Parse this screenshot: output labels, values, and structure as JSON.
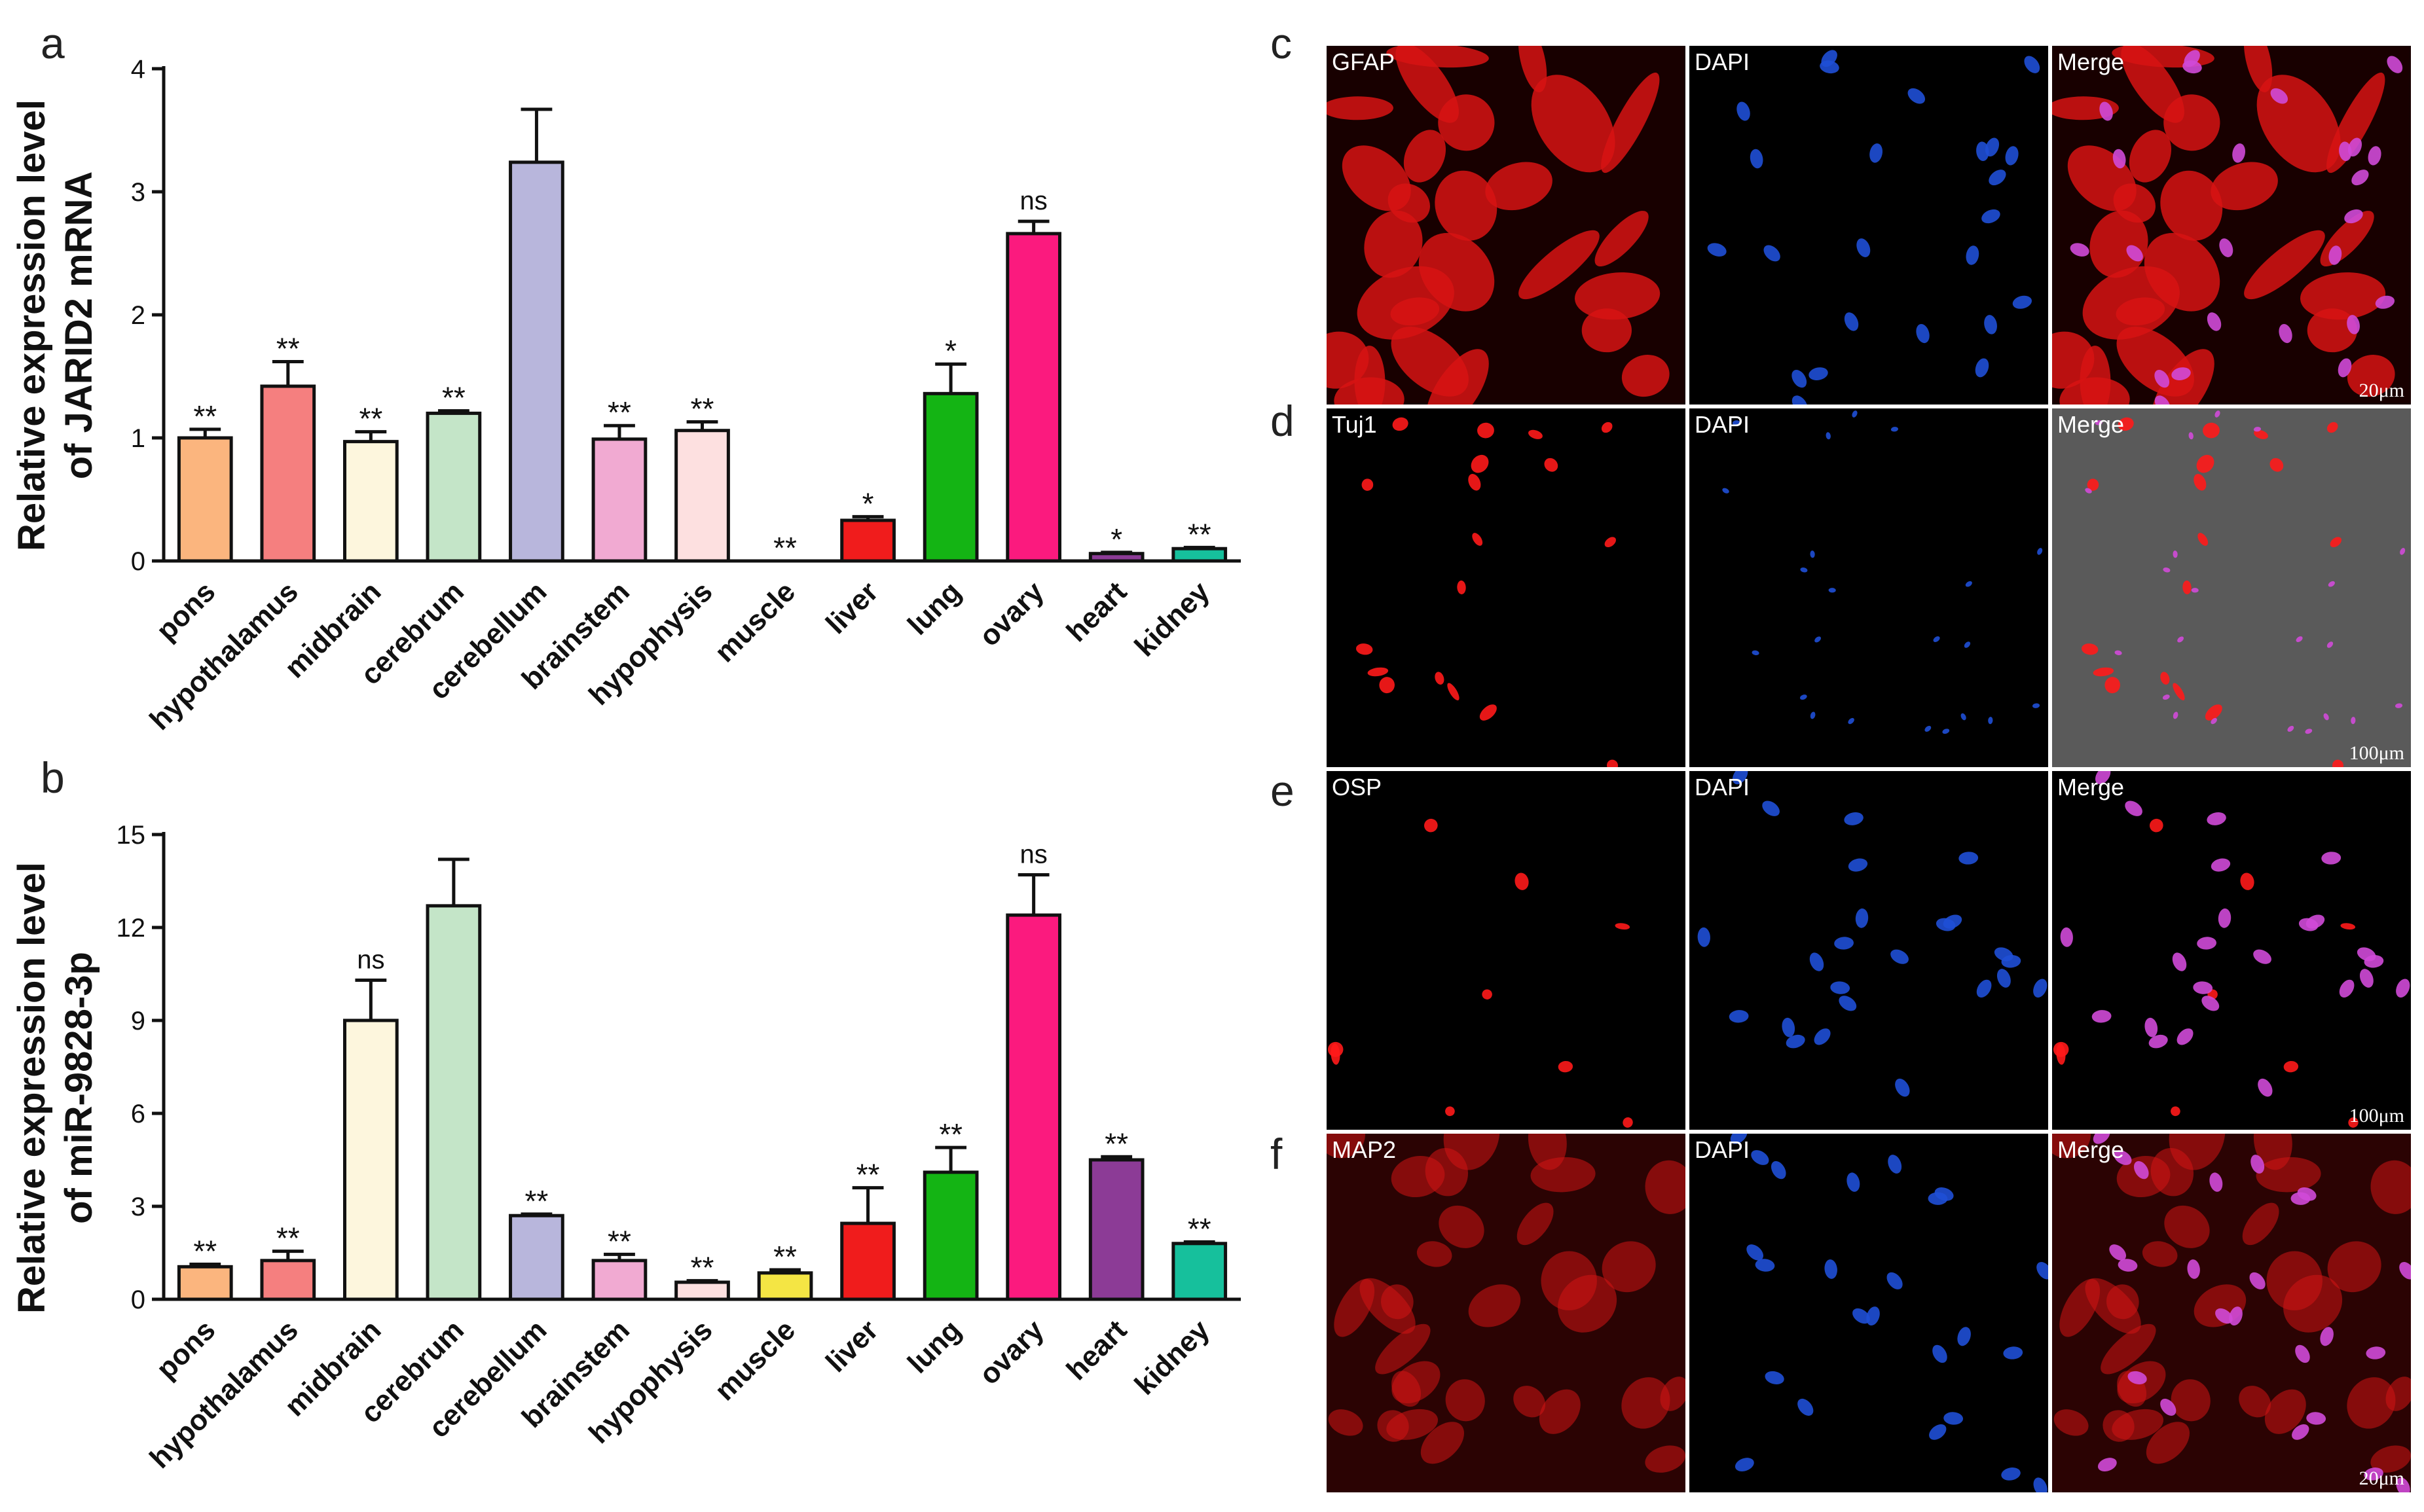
{
  "panels": {
    "a": "a",
    "b": "b",
    "c": "c",
    "d": "d",
    "e": "e",
    "f": "f"
  },
  "chart_data": [
    {
      "type": "bar",
      "panel": "a",
      "ylabel_line1": "Relative expression level",
      "ylabel_line2": "of JARID2 mRNA",
      "ylim": [
        0,
        4
      ],
      "yticks": [
        "0",
        "1",
        "2",
        "3",
        "4"
      ],
      "ytick_values": [
        0,
        1,
        2,
        3,
        4
      ],
      "categories": [
        "pons",
        "hypothalamus",
        "midbrain",
        "cerebrum",
        "cerebellum",
        "brainstem",
        "hypophysis",
        "muscle",
        "liver",
        "lung",
        "ovary",
        "heart",
        "kidney"
      ],
      "values": [
        1.0,
        1.42,
        0.97,
        1.2,
        3.24,
        0.99,
        1.06,
        0.0,
        0.33,
        1.36,
        2.66,
        0.06,
        0.1
      ],
      "errors": [
        0.07,
        0.2,
        0.08,
        0.02,
        0.43,
        0.11,
        0.07,
        0.0,
        0.03,
        0.24,
        0.1,
        0.01,
        0.01
      ],
      "significance": [
        "**",
        "**",
        "**",
        "**",
        "",
        "**",
        "**",
        "**",
        "*",
        "*",
        "ns",
        "*",
        "**"
      ],
      "colors": [
        "#fbb57e",
        "#f57f7f",
        "#fdf6dd",
        "#c4e5c8",
        "#b8b6dc",
        "#f1aad2",
        "#fde0e0",
        "#f4e544",
        "#f01c1c",
        "#14b414",
        "#fb1a7e",
        "#8c3b96",
        "#16c09c"
      ]
    },
    {
      "type": "bar",
      "panel": "b",
      "ylabel_line1": "Relative expression level",
      "ylabel_line2": "of miR-9828-3p",
      "ylim": [
        0,
        15
      ],
      "yticks": [
        "0",
        "3",
        "6",
        "9",
        "12",
        "15"
      ],
      "ytick_values": [
        0,
        3,
        6,
        9,
        12,
        15
      ],
      "categories": [
        "pons",
        "hypothalamus",
        "midbrain",
        "cerebrum",
        "cerebellum",
        "brainstem",
        "hypophysis",
        "muscle",
        "liver",
        "lung",
        "ovary",
        "heart",
        "kidney"
      ],
      "values": [
        1.05,
        1.25,
        9.0,
        12.7,
        2.7,
        1.25,
        0.55,
        0.85,
        2.45,
        4.1,
        12.4,
        4.5,
        1.8
      ],
      "errors": [
        0.08,
        0.3,
        1.3,
        1.5,
        0.05,
        0.2,
        0.05,
        0.1,
        1.15,
        0.8,
        1.3,
        0.1,
        0.05
      ],
      "significance": [
        "**",
        "**",
        "ns",
        "",
        "**",
        "**",
        "**",
        "**",
        "**",
        "**",
        "ns",
        "**",
        "**"
      ],
      "colors": [
        "#fbb57e",
        "#f57f7f",
        "#fdf6dd",
        "#c4e5c8",
        "#b8b6dc",
        "#f1aad2",
        "#fde0e0",
        "#f4e544",
        "#f01c1c",
        "#14b414",
        "#fb1a7e",
        "#8c3b96",
        "#16c09c"
      ]
    }
  ],
  "micrographs": [
    {
      "panel": "c",
      "stain_label": "GFAP",
      "stain_color": "#ff1a1a",
      "dapi_label": "DAPI",
      "merge_label": "Merge",
      "scale_label": "20μm"
    },
    {
      "panel": "d",
      "stain_label": "Tuj1",
      "stain_color": "#ff1a1a",
      "dapi_label": "DAPI",
      "merge_label": "Merge",
      "scale_label": "100μm"
    },
    {
      "panel": "e",
      "stain_label": "OSP",
      "stain_color": "#ff1a1a",
      "dapi_label": "DAPI",
      "merge_label": "Merge",
      "scale_label": "100μm"
    },
    {
      "panel": "f",
      "stain_label": "MAP2",
      "stain_color": "#ff1a1a",
      "dapi_label": "DAPI",
      "merge_label": "Merge",
      "scale_label": "20μm"
    }
  ]
}
